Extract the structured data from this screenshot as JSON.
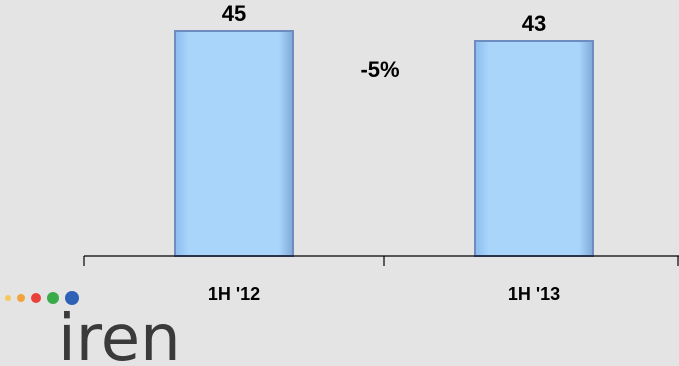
{
  "chart_data": {
    "type": "bar",
    "categories": [
      "1H '12",
      "1H '13"
    ],
    "values": [
      45,
      43
    ],
    "data_labels": [
      "45",
      "43"
    ],
    "annotations": [
      {
        "text": "-5%"
      }
    ],
    "title": "",
    "xlabel": "",
    "ylabel": "",
    "ylim": [
      0,
      50
    ],
    "grid": false,
    "legend": "none",
    "bar_color": "#a9d5fb",
    "bar_edge_color": "#6f8cc0"
  },
  "logo": {
    "text": "iren",
    "dot_colors": [
      "#f6c85a",
      "#f3a33c",
      "#e8403a",
      "#3bab49",
      "#2f62b6"
    ]
  }
}
